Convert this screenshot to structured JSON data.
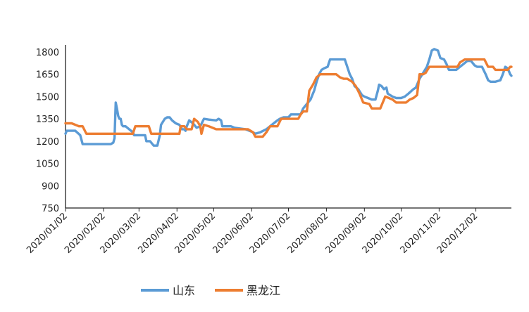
{
  "chart_data": {
    "type": "line",
    "title": "",
    "xlabel": "",
    "ylabel": "",
    "ylim": [
      750,
      1800
    ],
    "yticks": [
      750,
      900,
      1050,
      1200,
      1350,
      1500,
      1650,
      1800
    ],
    "xticks": [
      "2020/01/02",
      "2020/02/02",
      "2020/03/02",
      "2020/04/02",
      "2020/05/02",
      "2020/06/02",
      "2020/07/02",
      "2020/08/02",
      "2020/09/02",
      "2020/10/02",
      "2020/11/02",
      "2020/12/02"
    ],
    "xlim": [
      "2020/01/02",
      "2020/12/31"
    ],
    "grid": false,
    "legend_position": "bottom",
    "series": [
      {
        "name": "山东",
        "color": "#5B9BD5",
        "points": [
          [
            "2020/01/02",
            1250
          ],
          [
            "2020/01/03",
            1270
          ],
          [
            "2020/01/10",
            1270
          ],
          [
            "2020/01/14",
            1240
          ],
          [
            "2020/01/15",
            1210
          ],
          [
            "2020/01/16",
            1180
          ],
          [
            "2020/02/08",
            1180
          ],
          [
            "2020/02/10",
            1190
          ],
          [
            "2020/02/11",
            1220
          ],
          [
            "2020/02/12",
            1460
          ],
          [
            "2020/02/13",
            1420
          ],
          [
            "2020/02/14",
            1370
          ],
          [
            "2020/02/15",
            1350
          ],
          [
            "2020/02/16",
            1350
          ],
          [
            "2020/02/17",
            1310
          ],
          [
            "2020/02/18",
            1300
          ],
          [
            "2020/02/20",
            1300
          ],
          [
            "2020/02/23",
            1280
          ],
          [
            "2020/02/26",
            1260
          ],
          [
            "2020/02/27",
            1240
          ],
          [
            "2020/03/07",
            1240
          ],
          [
            "2020/03/08",
            1200
          ],
          [
            "2020/03/11",
            1200
          ],
          [
            "2020/03/14",
            1170
          ],
          [
            "2020/03/17",
            1170
          ],
          [
            "2020/03/19",
            1240
          ],
          [
            "2020/03/20",
            1310
          ],
          [
            "2020/03/23",
            1350
          ],
          [
            "2020/03/25",
            1360
          ],
          [
            "2020/03/27",
            1360
          ],
          [
            "2020/03/29",
            1340
          ],
          [
            "2020/04/01",
            1320
          ],
          [
            "2020/04/04",
            1310
          ],
          [
            "2020/04/06",
            1280
          ],
          [
            "2020/04/08",
            1280
          ],
          [
            "2020/04/09",
            1270
          ],
          [
            "2020/04/10",
            1300
          ],
          [
            "2020/04/12",
            1340
          ],
          [
            "2020/04/15",
            1320
          ],
          [
            "2020/04/18",
            1290
          ],
          [
            "2020/04/21",
            1300
          ],
          [
            "2020/04/24",
            1350
          ],
          [
            "2020/04/28",
            1345
          ],
          [
            "2020/05/04",
            1340
          ],
          [
            "2020/05/06",
            1350
          ],
          [
            "2020/05/08",
            1340
          ],
          [
            "2020/05/09",
            1300
          ],
          [
            "2020/05/16",
            1300
          ],
          [
            "2020/05/19",
            1290
          ],
          [
            "2020/05/28",
            1280
          ],
          [
            "2020/05/31",
            1270
          ],
          [
            "2020/06/03",
            1260
          ],
          [
            "2020/06/05",
            1250
          ],
          [
            "2020/06/09",
            1260
          ],
          [
            "2020/06/14",
            1280
          ],
          [
            "2020/06/17",
            1300
          ],
          [
            "2020/06/20",
            1320
          ],
          [
            "2020/06/23",
            1340
          ],
          [
            "2020/06/25",
            1350
          ],
          [
            "2020/06/28",
            1360
          ],
          [
            "2020/07/02",
            1360
          ],
          [
            "2020/07/04",
            1380
          ],
          [
            "2020/07/12",
            1380
          ],
          [
            "2020/07/14",
            1420
          ],
          [
            "2020/07/17",
            1450
          ],
          [
            "2020/07/20",
            1480
          ],
          [
            "2020/07/23",
            1540
          ],
          [
            "2020/07/25",
            1600
          ],
          [
            "2020/07/27",
            1650
          ],
          [
            "2020/07/29",
            1680
          ],
          [
            "2020/07/31",
            1690
          ],
          [
            "2020/08/03",
            1700
          ],
          [
            "2020/08/05",
            1750
          ],
          [
            "2020/08/15",
            1750
          ],
          [
            "2020/08/17",
            1750
          ],
          [
            "2020/08/19",
            1700
          ],
          [
            "2020/08/21",
            1650
          ],
          [
            "2020/08/23",
            1620
          ],
          [
            "2020/08/25",
            1570
          ],
          [
            "2020/08/28",
            1550
          ],
          [
            "2020/08/31",
            1510
          ],
          [
            "2020/09/02",
            1500
          ],
          [
            "2020/09/05",
            1490
          ],
          [
            "2020/09/08",
            1480
          ],
          [
            "2020/09/11",
            1480
          ],
          [
            "2020/09/13",
            1540
          ],
          [
            "2020/09/14",
            1580
          ],
          [
            "2020/09/16",
            1570
          ],
          [
            "2020/09/18",
            1550
          ],
          [
            "2020/09/20",
            1560
          ],
          [
            "2020/09/21",
            1520
          ],
          [
            "2020/09/23",
            1510
          ],
          [
            "2020/09/25",
            1500
          ],
          [
            "2020/09/28",
            1490
          ],
          [
            "2020/10/02",
            1490
          ],
          [
            "2020/10/05",
            1500
          ],
          [
            "2020/10/08",
            1520
          ],
          [
            "2020/10/12",
            1550
          ],
          [
            "2020/10/14",
            1560
          ],
          [
            "2020/10/17",
            1620
          ],
          [
            "2020/10/20",
            1660
          ],
          [
            "2020/10/23",
            1700
          ],
          [
            "2020/10/25",
            1750
          ],
          [
            "2020/10/27",
            1810
          ],
          [
            "2020/10/29",
            1820
          ],
          [
            "2020/11/01",
            1810
          ],
          [
            "2020/11/03",
            1760
          ],
          [
            "2020/11/06",
            1750
          ],
          [
            "2020/11/08",
            1720
          ],
          [
            "2020/11/10",
            1680
          ],
          [
            "2020/11/16",
            1680
          ],
          [
            "2020/11/19",
            1700
          ],
          [
            "2020/11/22",
            1720
          ],
          [
            "2020/11/25",
            1740
          ],
          [
            "2020/11/28",
            1740
          ],
          [
            "2020/12/01",
            1710
          ],
          [
            "2020/12/03",
            1700
          ],
          [
            "2020/12/07",
            1700
          ],
          [
            "2020/12/10",
            1650
          ],
          [
            "2020/12/12",
            1610
          ],
          [
            "2020/12/14",
            1600
          ],
          [
            "2020/12/18",
            1600
          ],
          [
            "2020/12/22",
            1610
          ],
          [
            "2020/12/24",
            1650
          ],
          [
            "2020/12/26",
            1700
          ],
          [
            "2020/12/28",
            1690
          ],
          [
            "2020/12/30",
            1650
          ],
          [
            "2020/12/31",
            1640
          ]
        ]
      },
      {
        "name": "黑龙江",
        "color": "#ED7D31",
        "points": [
          [
            "2020/01/02",
            1320
          ],
          [
            "2020/01/07",
            1320
          ],
          [
            "2020/01/10",
            1310
          ],
          [
            "2020/01/13",
            1300
          ],
          [
            "2020/01/16",
            1300
          ],
          [
            "2020/01/19",
            1250
          ],
          [
            "2020/02/26",
            1250
          ],
          [
            "2020/02/28",
            1300
          ],
          [
            "2020/03/10",
            1300
          ],
          [
            "2020/03/12",
            1250
          ],
          [
            "2020/04/04",
            1250
          ],
          [
            "2020/04/05",
            1300
          ],
          [
            "2020/04/08",
            1300
          ],
          [
            "2020/04/10",
            1280
          ],
          [
            "2020/04/14",
            1280
          ],
          [
            "2020/04/16",
            1350
          ],
          [
            "2020/04/19",
            1330
          ],
          [
            "2020/04/21",
            1300
          ],
          [
            "2020/04/22",
            1250
          ],
          [
            "2020/04/24",
            1310
          ],
          [
            "2020/04/28",
            1300
          ],
          [
            "2020/05/04",
            1280
          ],
          [
            "2020/05/30",
            1280
          ],
          [
            "2020/06/03",
            1260
          ],
          [
            "2020/06/05",
            1230
          ],
          [
            "2020/06/11",
            1230
          ],
          [
            "2020/06/14",
            1260
          ],
          [
            "2020/06/17",
            1300
          ],
          [
            "2020/06/23",
            1300
          ],
          [
            "2020/06/26",
            1350
          ],
          [
            "2020/07/10",
            1350
          ],
          [
            "2020/07/12",
            1380
          ],
          [
            "2020/07/14",
            1400
          ],
          [
            "2020/07/17",
            1400
          ],
          [
            "2020/07/19",
            1540
          ],
          [
            "2020/07/22",
            1580
          ],
          [
            "2020/07/25",
            1630
          ],
          [
            "2020/07/28",
            1650
          ],
          [
            "2020/08/10",
            1650
          ],
          [
            "2020/08/13",
            1630
          ],
          [
            "2020/08/16",
            1620
          ],
          [
            "2020/08/19",
            1620
          ],
          [
            "2020/08/23",
            1600
          ],
          [
            "2020/08/26",
            1570
          ],
          [
            "2020/08/29",
            1520
          ],
          [
            "2020/09/01",
            1460
          ],
          [
            "2020/09/06",
            1450
          ],
          [
            "2020/09/08",
            1420
          ],
          [
            "2020/09/15",
            1420
          ],
          [
            "2020/09/19",
            1500
          ],
          [
            "2020/09/22",
            1490
          ],
          [
            "2020/09/25",
            1480
          ],
          [
            "2020/09/28",
            1460
          ],
          [
            "2020/10/06",
            1460
          ],
          [
            "2020/10/09",
            1480
          ],
          [
            "2020/10/12",
            1490
          ],
          [
            "2020/10/15",
            1510
          ],
          [
            "2020/10/17",
            1650
          ],
          [
            "2020/10/20",
            1650
          ],
          [
            "2020/10/22",
            1660
          ],
          [
            "2020/10/25",
            1700
          ],
          [
            "2020/11/17",
            1700
          ],
          [
            "2020/11/19",
            1730
          ],
          [
            "2020/11/23",
            1750
          ],
          [
            "2020/12/09",
            1750
          ],
          [
            "2020/12/12",
            1700
          ],
          [
            "2020/12/16",
            1700
          ],
          [
            "2020/12/18",
            1680
          ],
          [
            "2020/12/28",
            1680
          ],
          [
            "2020/12/30",
            1700
          ],
          [
            "2020/12/31",
            1700
          ]
        ]
      }
    ]
  }
}
